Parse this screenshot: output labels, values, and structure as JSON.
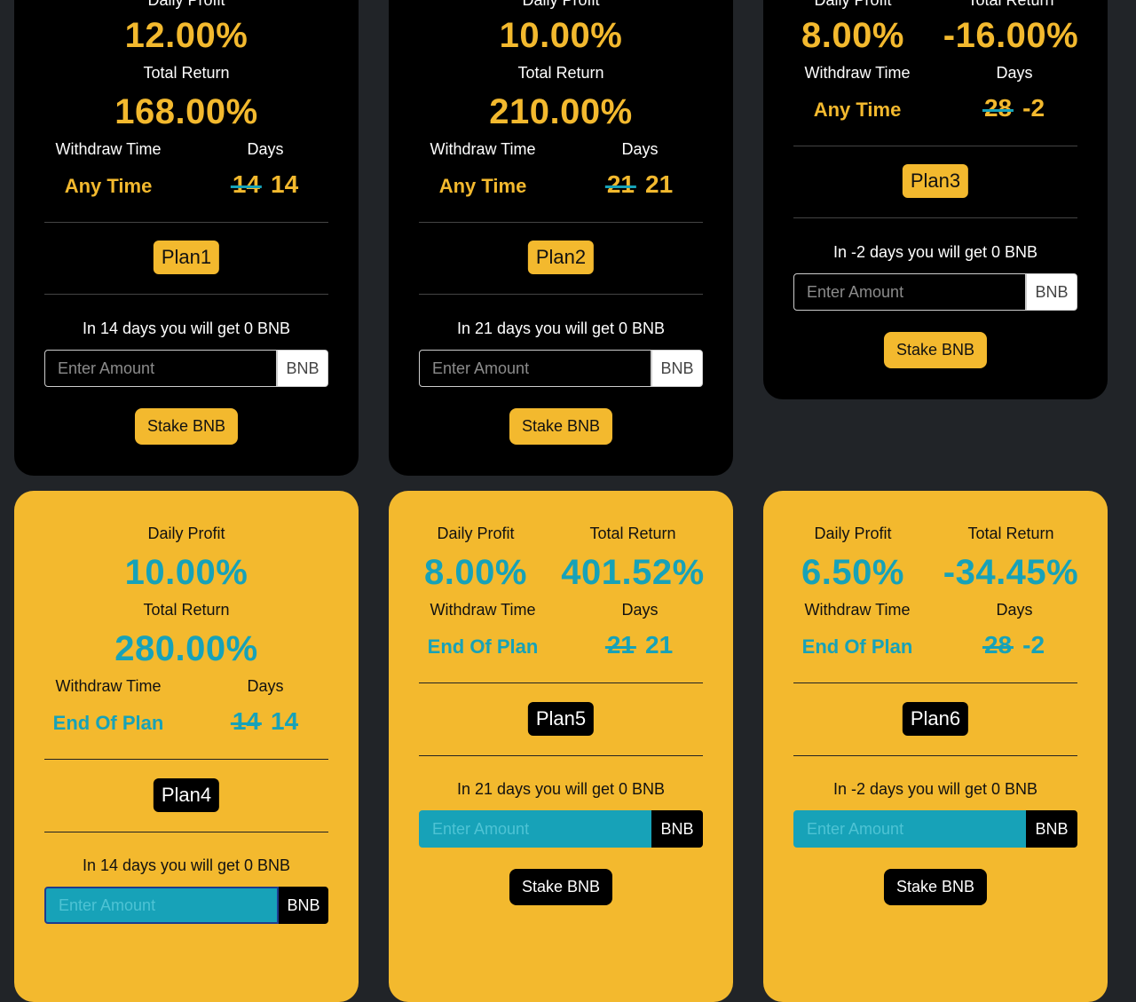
{
  "labels": {
    "daily_profit": "Daily Profit",
    "total_return": "Total Return",
    "withdraw_time": "Withdraw Time",
    "days": "Days",
    "placeholder": "Enter Amount",
    "unit": "BNB",
    "stake": "Stake BNB"
  },
  "plans": [
    {
      "name": "Plan1",
      "daily_profit": "12.00%",
      "total_return": "168.00%",
      "withdraw": "Any Time",
      "days_old": "14",
      "days_new": "14",
      "info": "In 14 days you will get 0 BNB"
    },
    {
      "name": "Plan2",
      "daily_profit": "10.00%",
      "total_return": "210.00%",
      "withdraw": "Any Time",
      "days_old": "21",
      "days_new": "21",
      "info": "In 21 days you will get 0 BNB"
    },
    {
      "name": "Plan3",
      "daily_profit": "8.00%",
      "total_return": "-16.00%",
      "withdraw": "Any Time",
      "days_old": "28",
      "days_new": "-2",
      "info": "In -2 days you will get 0 BNB"
    },
    {
      "name": "Plan4",
      "daily_profit": "10.00%",
      "total_return": "280.00%",
      "withdraw": "End Of Plan",
      "days_old": "14",
      "days_new": "14",
      "info": "In 14 days you will get 0 BNB"
    },
    {
      "name": "Plan5",
      "daily_profit": "8.00%",
      "total_return": "401.52%",
      "withdraw": "End Of Plan",
      "days_old": "21",
      "days_new": "21",
      "info": "In 21 days you will get 0 BNB"
    },
    {
      "name": "Plan6",
      "daily_profit": "6.50%",
      "total_return": "-34.45%",
      "withdraw": "End Of Plan",
      "days_old": "28",
      "days_new": "-2",
      "info": "In -2 days you will get 0 BNB"
    }
  ],
  "colors": {
    "accent": "#f3b92e",
    "teal": "#17a2b8",
    "background": "#212428"
  }
}
